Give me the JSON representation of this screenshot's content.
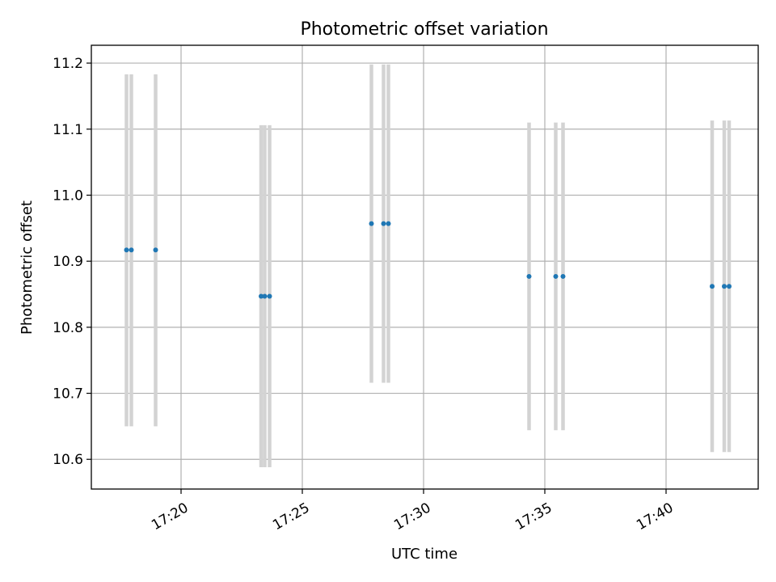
{
  "chart_data": {
    "type": "scatter",
    "title": "Photometric offset variation",
    "xlabel": "UTC time",
    "ylabel": "Photometric offset",
    "x_unit": "minutes past 17:00 UTC",
    "xlim": [
      16.3,
      43.8
    ],
    "ylim": [
      10.555,
      11.227
    ],
    "grid": true,
    "x_tick_values": [
      20,
      25,
      30,
      35,
      40
    ],
    "x_tick_labels": [
      "17:20",
      "17:25",
      "17:30",
      "17:35",
      "17:40"
    ],
    "y_tick_values": [
      10.6,
      10.7,
      10.8,
      10.9,
      11.0,
      11.1,
      11.2
    ],
    "y_tick_labels": [
      "10.6",
      "10.7",
      "10.8",
      "10.9",
      "11.0",
      "11.1",
      "11.2"
    ],
    "colors": {
      "point": "#1f77b4",
      "errorbar": "#d3d3d3",
      "grid": "#b0b0b0"
    },
    "points": [
      {
        "x": 17.75,
        "y": 10.917,
        "err_low": 10.65,
        "err_high": 11.183
      },
      {
        "x": 17.95,
        "y": 10.917,
        "err_low": 10.65,
        "err_high": 11.183
      },
      {
        "x": 18.95,
        "y": 10.917,
        "err_low": 10.65,
        "err_high": 11.183
      },
      {
        "x": 23.3,
        "y": 10.847,
        "err_low": 10.588,
        "err_high": 11.106
      },
      {
        "x": 23.45,
        "y": 10.847,
        "err_low": 10.588,
        "err_high": 11.106
      },
      {
        "x": 23.65,
        "y": 10.847,
        "err_low": 10.588,
        "err_high": 11.106
      },
      {
        "x": 27.85,
        "y": 10.957,
        "err_low": 10.716,
        "err_high": 11.198
      },
      {
        "x": 28.35,
        "y": 10.957,
        "err_low": 10.716,
        "err_high": 11.198
      },
      {
        "x": 28.55,
        "y": 10.957,
        "err_low": 10.716,
        "err_high": 11.198
      },
      {
        "x": 34.35,
        "y": 10.877,
        "err_low": 10.644,
        "err_high": 11.11
      },
      {
        "x": 35.45,
        "y": 10.877,
        "err_low": 10.644,
        "err_high": 11.11
      },
      {
        "x": 35.75,
        "y": 10.877,
        "err_low": 10.644,
        "err_high": 11.11
      },
      {
        "x": 41.9,
        "y": 10.862,
        "err_low": 10.611,
        "err_high": 11.113
      },
      {
        "x": 42.4,
        "y": 10.862,
        "err_low": 10.611,
        "err_high": 11.113
      },
      {
        "x": 42.6,
        "y": 10.862,
        "err_low": 10.611,
        "err_high": 11.113
      }
    ]
  }
}
